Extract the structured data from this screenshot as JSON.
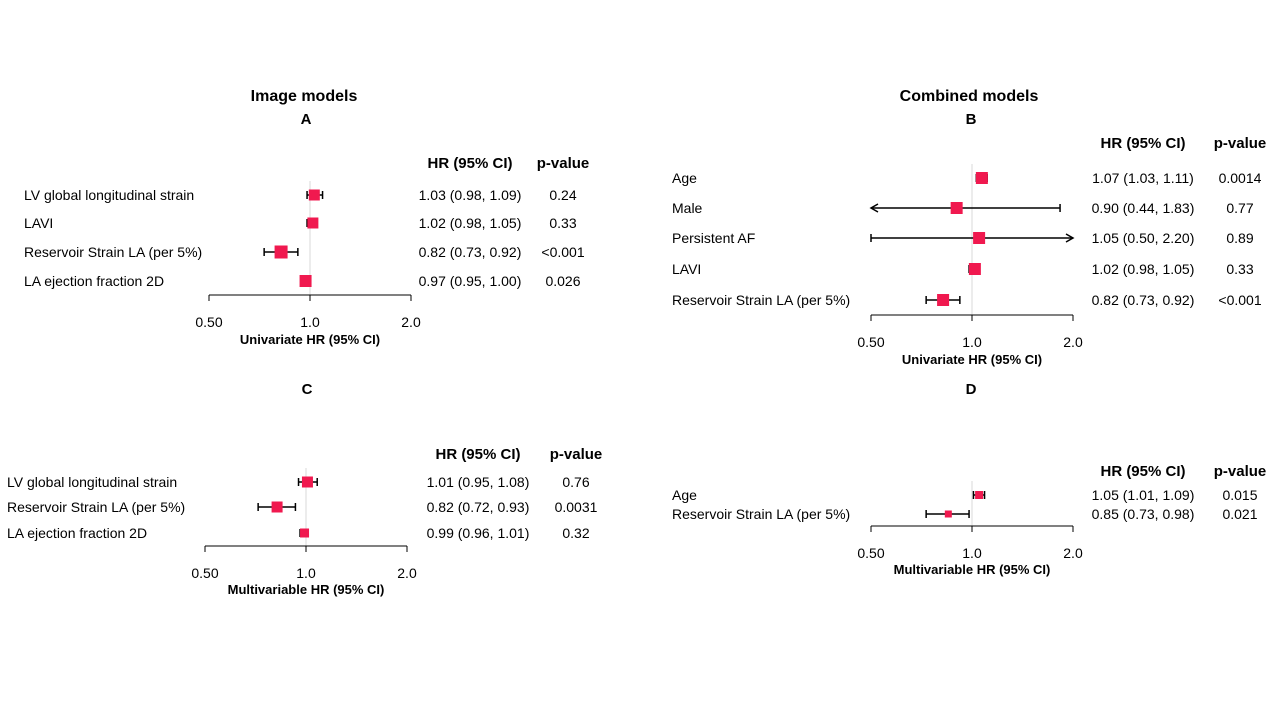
{
  "section_titles": {
    "left": "Image models",
    "right": "Combined models"
  },
  "marker_color": "#f0194f",
  "chart_data": [
    {
      "type": "forest",
      "panel_label": "A",
      "xlabel": "Univariate HR (95% CI)",
      "x_scale": "log",
      "xlim": [
        0.5,
        2.0
      ],
      "ticks": [
        0.5,
        1.0,
        2.0
      ],
      "tick_labels": [
        "0.50",
        "1.0",
        "2.0"
      ],
      "reference_line": 1.0,
      "col_headers": [
        "HR (95% CI)",
        "p-value"
      ],
      "rows": [
        {
          "label": "LV global longitudinal strain",
          "hr": 1.03,
          "lo": 0.98,
          "hi": 1.09,
          "ci_text": "1.03 (0.98, 1.09)",
          "p": "0.24"
        },
        {
          "label": "LAVI",
          "hr": 1.02,
          "lo": 0.98,
          "hi": 1.05,
          "ci_text": "1.02 (0.98, 1.05)",
          "p": "0.33"
        },
        {
          "label": "Reservoir Strain LA (per 5%)",
          "hr": 0.82,
          "lo": 0.73,
          "hi": 0.92,
          "ci_text": "0.82 (0.73, 0.92)",
          "p": "<0.001"
        },
        {
          "label": "LA ejection fraction 2D",
          "hr": 0.97,
          "lo": 0.95,
          "hi": 1.0,
          "ci_text": "0.97 (0.95, 1.00)",
          "p": "0.026"
        }
      ]
    },
    {
      "type": "forest",
      "panel_label": "B",
      "xlabel": "Univariate HR (95% CI)",
      "x_scale": "log",
      "xlim": [
        0.5,
        2.0
      ],
      "ticks": [
        0.5,
        1.0,
        2.0
      ],
      "tick_labels": [
        "0.50",
        "1.0",
        "2.0"
      ],
      "reference_line": 1.0,
      "col_headers": [
        "HR (95% CI)",
        "p-value"
      ],
      "rows": [
        {
          "label": "Age",
          "hr": 1.07,
          "lo": 1.03,
          "hi": 1.11,
          "ci_text": "1.07 (1.03, 1.11)",
          "p": "0.0014"
        },
        {
          "label": "Male",
          "hr": 0.9,
          "lo": 0.44,
          "hi": 1.83,
          "ci_text": "0.90 (0.44, 1.83)",
          "p": "0.77"
        },
        {
          "label": "Persistent AF",
          "hr": 1.05,
          "lo": 0.5,
          "hi": 2.2,
          "ci_text": "1.05 (0.50, 2.20)",
          "p": "0.89"
        },
        {
          "label": "LAVI",
          "hr": 1.02,
          "lo": 0.98,
          "hi": 1.05,
          "ci_text": "1.02 (0.98, 1.05)",
          "p": "0.33"
        },
        {
          "label": "Reservoir Strain LA (per 5%)",
          "hr": 0.82,
          "lo": 0.73,
          "hi": 0.92,
          "ci_text": "0.82 (0.73, 0.92)",
          "p": "<0.001"
        }
      ]
    },
    {
      "type": "forest",
      "panel_label": "C",
      "xlabel": "Multivariable HR (95% CI)",
      "x_scale": "log",
      "xlim": [
        0.5,
        2.0
      ],
      "ticks": [
        0.5,
        1.0,
        2.0
      ],
      "tick_labels": [
        "0.50",
        "1.0",
        "2.0"
      ],
      "reference_line": 1.0,
      "col_headers": [
        "HR (95% CI)",
        "p-value"
      ],
      "rows": [
        {
          "label": "LV global longitudinal strain",
          "hr": 1.01,
          "lo": 0.95,
          "hi": 1.08,
          "ci_text": "1.01 (0.95, 1.08)",
          "p": "0.76"
        },
        {
          "label": "Reservoir Strain LA (per 5%)",
          "hr": 0.82,
          "lo": 0.72,
          "hi": 0.93,
          "ci_text": "0.82 (0.72, 0.93)",
          "p": "0.0031"
        },
        {
          "label": "LA ejection fraction 2D",
          "hr": 0.99,
          "lo": 0.96,
          "hi": 1.01,
          "ci_text": "0.99 (0.96, 1.01)",
          "p": "0.32"
        }
      ]
    },
    {
      "type": "forest",
      "panel_label": "D",
      "xlabel": "Multivariable HR (95% CI)",
      "x_scale": "log",
      "xlim": [
        0.5,
        2.0
      ],
      "ticks": [
        0.5,
        1.0,
        2.0
      ],
      "tick_labels": [
        "0.50",
        "1.0",
        "2.0"
      ],
      "reference_line": 1.0,
      "col_headers": [
        "HR (95% CI)",
        "p-value"
      ],
      "rows": [
        {
          "label": "Age",
          "hr": 1.05,
          "lo": 1.01,
          "hi": 1.09,
          "ci_text": "1.05 (1.01, 1.09)",
          "p": "0.015"
        },
        {
          "label": "Reservoir Strain LA (per 5%)",
          "hr": 0.85,
          "lo": 0.73,
          "hi": 0.98,
          "ci_text": "0.85 (0.73, 0.98)",
          "p": "0.021"
        }
      ]
    }
  ]
}
